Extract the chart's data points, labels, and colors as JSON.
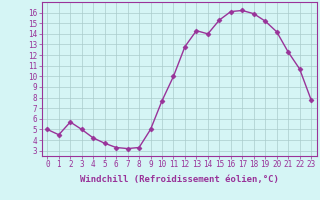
{
  "x": [
    0,
    1,
    2,
    3,
    4,
    5,
    6,
    7,
    8,
    9,
    10,
    11,
    12,
    13,
    14,
    15,
    16,
    17,
    18,
    19,
    20,
    21,
    22,
    23
  ],
  "y": [
    5.0,
    4.5,
    5.7,
    5.0,
    4.2,
    3.7,
    3.3,
    3.2,
    3.3,
    5.0,
    7.7,
    10.0,
    12.8,
    14.3,
    14.0,
    15.3,
    16.1,
    16.2,
    15.9,
    15.2,
    14.2,
    12.3,
    10.7,
    7.8
  ],
  "line_color": "#993399",
  "marker": "D",
  "markersize": 2.5,
  "linewidth": 1.0,
  "background_color": "#d5f5f5",
  "grid_color": "#aacccc",
  "xlabel": "Windchill (Refroidissement éolien,°C)",
  "ylabel": "",
  "xlim": [
    -0.5,
    23.5
  ],
  "ylim": [
    2.5,
    17.0
  ],
  "xticks": [
    0,
    1,
    2,
    3,
    4,
    5,
    6,
    7,
    8,
    9,
    10,
    11,
    12,
    13,
    14,
    15,
    16,
    17,
    18,
    19,
    20,
    21,
    22,
    23
  ],
  "yticks": [
    3,
    4,
    5,
    6,
    7,
    8,
    9,
    10,
    11,
    12,
    13,
    14,
    15,
    16
  ],
  "tick_fontsize": 5.5,
  "label_fontsize": 6.5,
  "label_color": "#993399",
  "tick_color": "#993399",
  "axis_color": "#993399"
}
